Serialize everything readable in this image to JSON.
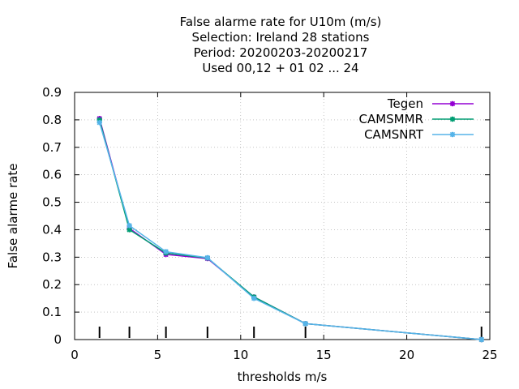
{
  "chart_data": {
    "type": "line",
    "title_lines": [
      "False alarme rate  for U10m (m/s)",
      "Selection: Ireland     28 stations",
      "Period: 20200203-20200217",
      "Used  00,12  + 01 02 ... 24"
    ],
    "xlabel": "thresholds m/s",
    "ylabel": "False alarme rate",
    "xlim": [
      0,
      25
    ],
    "ylim": [
      0,
      0.9
    ],
    "x_ticks": [
      0,
      5,
      10,
      15,
      20,
      25
    ],
    "y_ticks": [
      0,
      0.1,
      0.2,
      0.3,
      0.4,
      0.5,
      0.6,
      0.7,
      0.8,
      0.9
    ],
    "y_tick_labels": [
      "0",
      "0.1",
      "0.2",
      "0.3",
      "0.4",
      "0.5",
      "0.6",
      "0.7",
      "0.8",
      "0.9"
    ],
    "threshold_marks": [
      1.5,
      3.3,
      5.5,
      8.0,
      10.8,
      13.9,
      24.5
    ],
    "grid": true,
    "legend_position": "top-right",
    "series": [
      {
        "name": "Tegen",
        "color": "#9400d3",
        "x": [
          1.5,
          3.3,
          5.5,
          8.0,
          10.8,
          13.9,
          24.5
        ],
        "y": [
          0.805,
          0.405,
          0.31,
          0.295,
          0.155,
          0.058,
          0.0
        ]
      },
      {
        "name": "CAMSMMR",
        "color": "#009e73",
        "x": [
          1.5,
          3.3,
          5.5,
          8.0,
          10.8,
          13.9,
          24.5
        ],
        "y": [
          0.8,
          0.4,
          0.315,
          0.297,
          0.155,
          0.058,
          0.0
        ]
      },
      {
        "name": "CAMSNRT",
        "color": "#56b4e9",
        "x": [
          1.5,
          3.3,
          5.5,
          8.0,
          10.8,
          13.9,
          24.5
        ],
        "y": [
          0.79,
          0.415,
          0.32,
          0.298,
          0.15,
          0.058,
          0.0
        ]
      }
    ]
  }
}
